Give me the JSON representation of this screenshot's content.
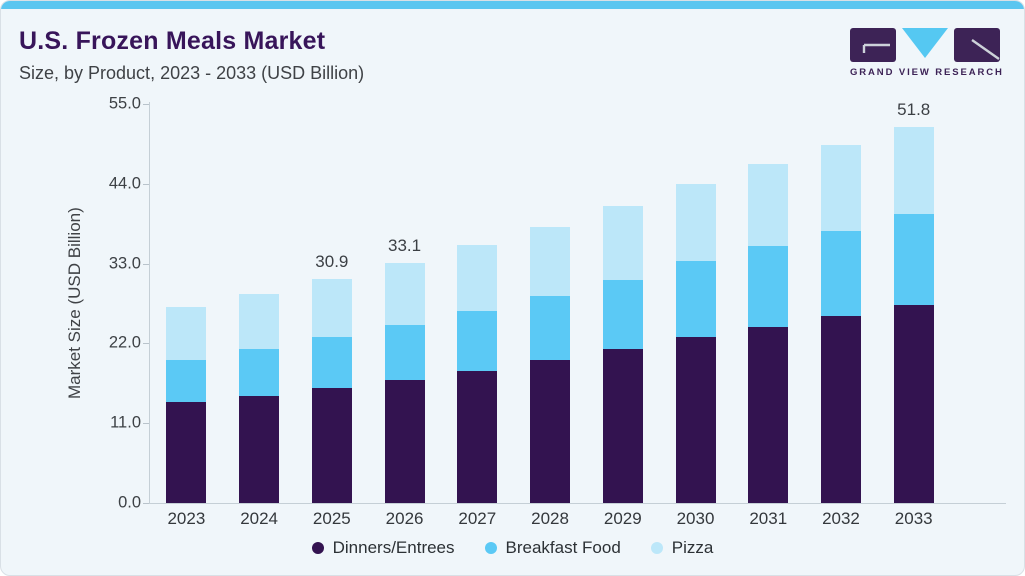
{
  "header": {
    "title": "U.S. Frozen Meals Market",
    "subtitle": "Size, by Product, 2023 - 2033 (USD Billion)"
  },
  "brand": {
    "name": "GRAND VIEW RESEARCH",
    "logo_icon": "gvr-logo"
  },
  "colors": {
    "accent_bar": "#5bc6f0",
    "title_text": "#38155a",
    "card_background": "#f0f6fa",
    "brand_purple": "#3d2356",
    "brand_blue": "#55c8f2",
    "series_dinners": "#331350",
    "series_breakfast": "#5bc9f5",
    "series_pizza": "#bce7f9"
  },
  "chart_data": {
    "type": "bar",
    "stacked": true,
    "title": "U.S. Frozen Meals Market Size, by Product, 2023 - 2033 (USD Billion)",
    "categories": [
      "2023",
      "2024",
      "2025",
      "2026",
      "2027",
      "2028",
      "2029",
      "2030",
      "2031",
      "2032",
      "2033"
    ],
    "series": [
      {
        "name": "Dinners/Entrees",
        "color": "#331350",
        "values": [
          13.9,
          14.8,
          15.9,
          16.9,
          18.2,
          19.7,
          21.2,
          22.9,
          24.3,
          25.8,
          27.3
        ]
      },
      {
        "name": "Breakfast Food",
        "color": "#5bc9f5",
        "values": [
          5.8,
          6.4,
          7.0,
          7.6,
          8.3,
          8.8,
          9.6,
          10.4,
          11.1,
          11.7,
          12.5
        ]
      },
      {
        "name": "Pizza",
        "color": "#bce7f9",
        "values": [
          7.3,
          7.6,
          8.0,
          8.6,
          9.0,
          9.6,
          10.2,
          10.7,
          11.3,
          11.8,
          12.0
        ]
      }
    ],
    "totals": [
      27.0,
      28.8,
      30.9,
      33.1,
      35.5,
      38.1,
      41.0,
      44.0,
      46.7,
      49.3,
      51.8
    ],
    "bar_labels": {
      "2025": "30.9",
      "2026": "33.1",
      "2033": "51.8"
    },
    "xlabel": "",
    "ylabel": "Market Size (USD Billion)",
    "ylim": [
      0,
      55
    ],
    "yticks": [
      "0.0",
      "11.0",
      "22.0",
      "33.0",
      "44.0",
      "55.0"
    ],
    "grid": false,
    "legend_position": "bottom"
  }
}
